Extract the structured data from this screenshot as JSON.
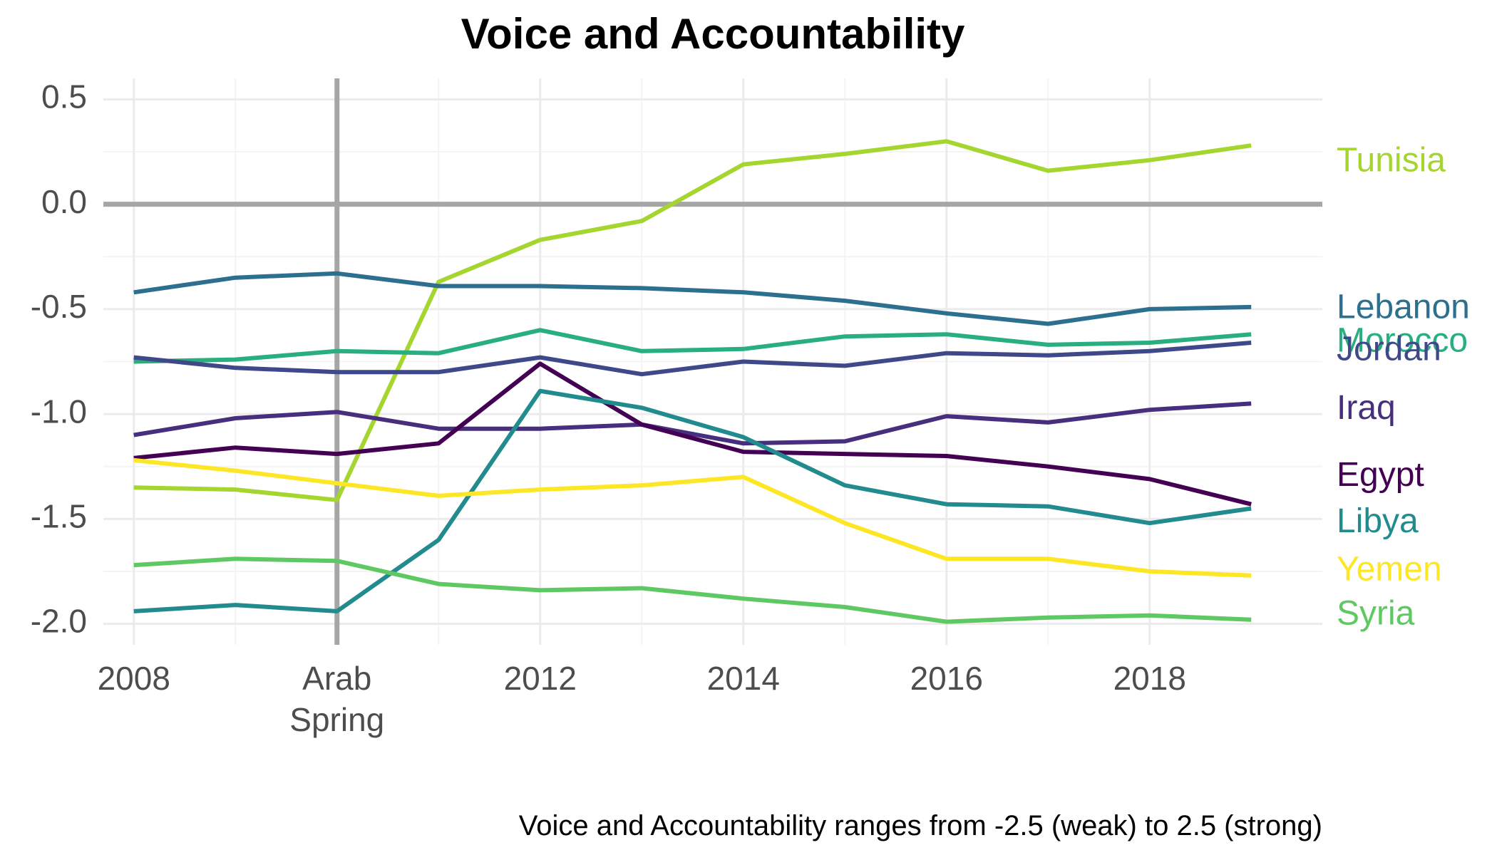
{
  "chart_data": {
    "type": "line",
    "title": "Voice and Accountability",
    "caption": "Voice and Accountability ranges from -2.5 (weak) to 2.5 (strong)",
    "xlabel": "",
    "ylabel": "",
    "x": [
      2008,
      2009,
      2010,
      2011,
      2012,
      2013,
      2014,
      2015,
      2016,
      2017,
      2018,
      2019
    ],
    "xlim": [
      2007.7,
      2019.7
    ],
    "ylim": [
      -2.1,
      0.6
    ],
    "x_ticks": [
      {
        "value": 2008,
        "label": [
          "2008"
        ]
      },
      {
        "value": 2010,
        "label": [
          "Arab",
          "Spring"
        ]
      },
      {
        "value": 2012,
        "label": [
          "2012"
        ]
      },
      {
        "value": 2014,
        "label": [
          "2014"
        ]
      },
      {
        "value": 2016,
        "label": [
          "2016"
        ]
      },
      {
        "value": 2018,
        "label": [
          "2018"
        ]
      }
    ],
    "y_ticks": [
      {
        "value": 0.5,
        "label": "0.5"
      },
      {
        "value": 0.0,
        "label": "0.0"
      },
      {
        "value": -0.5,
        "label": "-0.5"
      },
      {
        "value": -1.0,
        "label": "-1.0"
      },
      {
        "value": -1.5,
        "label": "-1.5"
      },
      {
        "value": -2.0,
        "label": "-2.0"
      }
    ],
    "reference_lines": {
      "horizontal": 0.0,
      "vertical": 2010,
      "color": "#a6a6a6"
    },
    "grid": true,
    "legend": "direct labels at right end of lines",
    "series": [
      {
        "name": "Tunisia",
        "color": "#a5d52f",
        "label_y": 0.2,
        "values": [
          -1.35,
          -1.36,
          -1.41,
          -0.37,
          -0.17,
          -0.08,
          0.19,
          0.24,
          0.3,
          0.16,
          0.21,
          0.28
        ]
      },
      {
        "name": "Lebanon",
        "color": "#2d6f8e",
        "label_y": -0.5,
        "values": [
          -0.42,
          -0.35,
          -0.33,
          -0.39,
          -0.39,
          -0.4,
          -0.42,
          -0.46,
          -0.52,
          -0.57,
          -0.5,
          -0.49
        ]
      },
      {
        "name": "Morocco",
        "color": "#29af7f",
        "label_y": -0.66,
        "values": [
          -0.75,
          -0.74,
          -0.7,
          -0.71,
          -0.6,
          -0.7,
          -0.69,
          -0.63,
          -0.62,
          -0.67,
          -0.66,
          -0.62
        ]
      },
      {
        "name": "Jordan",
        "color": "#3f4889",
        "label_y": -0.7,
        "values": [
          -0.73,
          -0.78,
          -0.8,
          -0.8,
          -0.73,
          -0.81,
          -0.75,
          -0.77,
          -0.71,
          -0.72,
          -0.7,
          -0.66
        ]
      },
      {
        "name": "Iraq",
        "color": "#472f7d",
        "label_y": -0.98,
        "values": [
          -1.1,
          -1.02,
          -0.99,
          -1.07,
          -1.07,
          -1.05,
          -1.14,
          -1.13,
          -1.01,
          -1.04,
          -0.98,
          -0.95
        ]
      },
      {
        "name": "Egypt",
        "color": "#440154",
        "label_y": -1.3,
        "values": [
          -1.21,
          -1.16,
          -1.19,
          -1.14,
          -0.76,
          -1.05,
          -1.18,
          -1.19,
          -1.2,
          -1.25,
          -1.31,
          -1.43
        ]
      },
      {
        "name": "Libya",
        "color": "#228b8d",
        "label_y": -1.52,
        "values": [
          -1.94,
          -1.91,
          -1.94,
          -1.6,
          -0.89,
          -0.97,
          -1.11,
          -1.34,
          -1.43,
          -1.44,
          -1.52,
          -1.45
        ]
      },
      {
        "name": "Yemen",
        "color": "#fde725",
        "label_y": -1.75,
        "values": [
          -1.22,
          -1.27,
          -1.33,
          -1.39,
          -1.36,
          -1.34,
          -1.3,
          -1.52,
          -1.69,
          -1.69,
          -1.75,
          -1.77
        ]
      },
      {
        "name": "Syria",
        "color": "#5ec962",
        "label_y": -1.96,
        "values": [
          -1.72,
          -1.69,
          -1.7,
          -1.81,
          -1.84,
          -1.83,
          -1.88,
          -1.92,
          -1.99,
          -1.97,
          -1.96,
          -1.98
        ]
      }
    ]
  }
}
